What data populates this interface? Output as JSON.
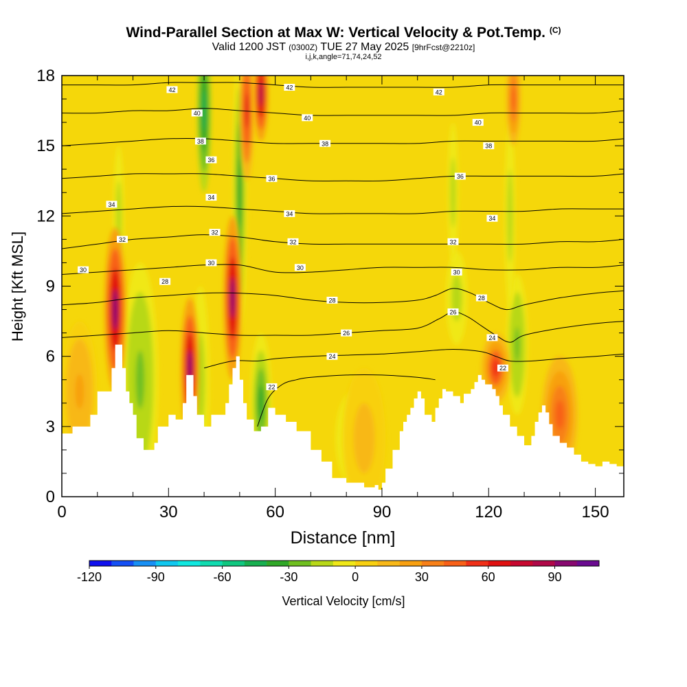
{
  "header": {
    "title": "Wind-Parallel Section at Max W: Vertical Velocity & Pot.Temp.",
    "title_tag": "(C)",
    "valid_a": "Valid 1200 JST",
    "valid_b": "(0300Z)",
    "valid_c": "TUE 27 May 2025",
    "valid_d": "[9hrFcst@2210z]",
    "params": "i,j,k,angle=71,74,24,52"
  },
  "colors": {
    "background": "#ffffff",
    "field_base": "#f5d70a",
    "contour": "#000000",
    "terrain": "#ffffff"
  },
  "chart_data": {
    "type": "heatmap",
    "xlabel": "Distance [nm]",
    "ylabel": "Height [Kft MSL]",
    "xlim": [
      0,
      158
    ],
    "ylim": [
      0,
      18
    ],
    "x_ticks": [
      0,
      30,
      60,
      90,
      120,
      150
    ],
    "y_ticks": [
      0,
      3,
      6,
      9,
      12,
      15,
      18
    ],
    "x_minor_step": 10,
    "y_minor_step": 1,
    "grid": false,
    "colorbar": {
      "label": "Vertical Velocity [cm/s]",
      "min": -120,
      "step": 10,
      "tick_values": [
        -120,
        -90,
        -60,
        -30,
        0,
        30,
        60,
        90
      ],
      "colors": [
        "#1010ee",
        "#1550f5",
        "#1890f5",
        "#10c8f0",
        "#10e8e0",
        "#10dcb0",
        "#10c880",
        "#18b050",
        "#30a828",
        "#70c020",
        "#b8d818",
        "#f0e818",
        "#f8d010",
        "#f8b818",
        "#f8a010",
        "#f88018",
        "#f86018",
        "#f03018",
        "#e01010",
        "#c80830",
        "#b00848",
        "#880870",
        "#6a0a90"
      ]
    },
    "terrain_profile": {
      "x": [
        0,
        3,
        8,
        10,
        14,
        15,
        16,
        17,
        18,
        19,
        20,
        21,
        23,
        26,
        27,
        30,
        32,
        34,
        35,
        37,
        38,
        40,
        41,
        42,
        46,
        47,
        48,
        49,
        50,
        51,
        52,
        54,
        56,
        58,
        60,
        63,
        66,
        70,
        73,
        76,
        80,
        85,
        88,
        89,
        90,
        91,
        93,
        95,
        96,
        97,
        98,
        99,
        100,
        101,
        102,
        104,
        105,
        106,
        107,
        108,
        110,
        112,
        113,
        115,
        116,
        117,
        118,
        119,
        120,
        121,
        122,
        123,
        124,
        126,
        128,
        130,
        132,
        133,
        134,
        135,
        136,
        137,
        138,
        140,
        142,
        144,
        146,
        148,
        150,
        152,
        154,
        156,
        158
      ],
      "y": [
        2.7,
        3.0,
        3.5,
        4.5,
        5.5,
        6.5,
        6.5,
        5.5,
        4.5,
        4.0,
        3.5,
        2.5,
        2.0,
        2.3,
        3.0,
        3.5,
        3.3,
        4.0,
        5.2,
        4.3,
        3.5,
        3.0,
        3.0,
        3.5,
        4.0,
        4.8,
        5.5,
        6.0,
        5.0,
        4.0,
        3.3,
        2.8,
        3.0,
        3.8,
        3.5,
        3.2,
        2.8,
        2.0,
        1.5,
        0.8,
        0.6,
        0.4,
        0.5,
        0.3,
        0.6,
        1.2,
        2.0,
        2.8,
        3.2,
        3.5,
        3.8,
        4.2,
        4.5,
        4.2,
        3.5,
        3.2,
        3.8,
        4.2,
        4.6,
        4.5,
        4.3,
        4.0,
        4.4,
        4.6,
        4.9,
        5.2,
        5.0,
        4.8,
        4.8,
        4.6,
        4.3,
        3.9,
        3.5,
        3.0,
        2.6,
        2.2,
        2.6,
        3.2,
        3.6,
        3.9,
        3.6,
        3.1,
        2.6,
        2.3,
        2.1,
        1.8,
        1.5,
        1.4,
        1.3,
        1.5,
        1.4,
        1.3,
        1.3
      ]
    },
    "updrafts": [
      {
        "x": 15,
        "y": 8,
        "width_nm": 3,
        "height_kft": 3.5,
        "w": 90
      },
      {
        "x": 36,
        "y": 5.5,
        "width_nm": 2.5,
        "height_kft": 3.0,
        "w": 90
      },
      {
        "x": 48,
        "y": 8.5,
        "width_nm": 2.5,
        "height_kft": 3.5,
        "w": 90
      },
      {
        "x": 52,
        "y": 16.5,
        "width_nm": 2,
        "height_kft": 3.0,
        "w": 60
      },
      {
        "x": 56,
        "y": 17.2,
        "width_nm": 2,
        "height_kft": 2.0,
        "w": 80
      },
      {
        "x": 122,
        "y": 5.5,
        "width_nm": 4,
        "height_kft": 1.5,
        "w": 55
      },
      {
        "x": 140,
        "y": 3.5,
        "width_nm": 5,
        "height_kft": 2.5,
        "w": 40
      },
      {
        "x": 127,
        "y": 17.0,
        "width_nm": 2,
        "height_kft": 2.0,
        "w": 40
      },
      {
        "x": 5,
        "y": 4.5,
        "width_nm": 5,
        "height_kft": 3.0,
        "w": 20
      },
      {
        "x": 85,
        "y": 2.5,
        "width_nm": 6,
        "height_kft": 3.0,
        "w": 15
      }
    ],
    "downdrafts": [
      {
        "x": 22,
        "y": 5.0,
        "width_nm": 5,
        "height_kft": 5.0,
        "w": -25
      },
      {
        "x": 39,
        "y": 5.0,
        "width_nm": 2.5,
        "height_kft": 4.0,
        "w": -20
      },
      {
        "x": 40,
        "y": 16.5,
        "width_nm": 2,
        "height_kft": 3.5,
        "w": -50
      },
      {
        "x": 50,
        "y": 13.0,
        "width_nm": 2,
        "height_kft": 6.0,
        "w": -40
      },
      {
        "x": 56,
        "y": 4.0,
        "width_nm": 3,
        "height_kft": 3.0,
        "w": -40
      },
      {
        "x": 111,
        "y": 8.5,
        "width_nm": 3,
        "height_kft": 2.0,
        "w": -20
      },
      {
        "x": 128,
        "y": 6.5,
        "width_nm": 3,
        "height_kft": 3.0,
        "w": -25
      },
      {
        "x": 110,
        "y": 13.0,
        "width_nm": 1.5,
        "height_kft": 3.0,
        "w": -15
      },
      {
        "x": 126,
        "y": 12.0,
        "width_nm": 1.5,
        "height_kft": 4.0,
        "w": -15
      },
      {
        "x": 16,
        "y": 12.0,
        "width_nm": 1.5,
        "height_kft": 3.0,
        "w": -15
      },
      {
        "x": 82,
        "y": 2.5,
        "width_nm": 5,
        "height_kft": 2.0,
        "w": -12
      }
    ],
    "isentropes": [
      {
        "label": "22",
        "x": [
          55,
          58,
          62,
          66,
          70,
          80,
          90,
          100,
          105
        ],
        "y": [
          3.0,
          4.2,
          4.8,
          5.0,
          5.1,
          5.2,
          5.2,
          5.1,
          5.0
        ]
      },
      {
        "label": "24",
        "x": [
          40,
          48,
          55,
          60,
          70,
          80,
          90,
          100,
          110,
          118,
          122,
          126,
          132,
          140,
          150,
          158
        ],
        "y": [
          5.5,
          5.8,
          5.8,
          5.9,
          6.0,
          6.05,
          6.1,
          6.2,
          6.3,
          6.2,
          6.0,
          5.8,
          5.8,
          5.9,
          6.0,
          6.1
        ]
      },
      {
        "label": "26",
        "x": [
          0,
          10,
          20,
          30,
          40,
          50,
          60,
          70,
          80,
          90,
          100,
          106,
          110,
          114,
          118,
          122,
          126,
          130,
          140,
          150,
          158
        ],
        "y": [
          6.8,
          6.9,
          7.0,
          7.1,
          7.0,
          6.9,
          6.9,
          6.9,
          7.0,
          7.1,
          7.2,
          7.6,
          7.9,
          7.7,
          7.3,
          6.9,
          6.6,
          6.9,
          7.2,
          7.4,
          7.5
        ]
      },
      {
        "label": "28",
        "x": [
          0,
          10,
          20,
          30,
          40,
          50,
          60,
          70,
          80,
          90,
          100,
          105,
          110,
          115,
          120,
          125,
          130,
          140,
          150,
          158
        ],
        "y": [
          8.2,
          8.3,
          8.5,
          8.6,
          8.7,
          8.7,
          8.6,
          8.4,
          8.3,
          8.3,
          8.4,
          8.6,
          8.9,
          8.7,
          8.3,
          8.0,
          8.2,
          8.5,
          8.7,
          8.8
        ]
      },
      {
        "label": "30",
        "x": [
          0,
          10,
          20,
          30,
          40,
          50,
          60,
          70,
          80,
          90,
          100,
          110,
          120,
          130,
          140,
          150,
          158
        ],
        "y": [
          9.5,
          9.6,
          9.7,
          9.8,
          9.9,
          9.9,
          9.6,
          9.6,
          9.7,
          9.8,
          9.8,
          9.8,
          9.7,
          9.7,
          9.8,
          9.8,
          9.9
        ]
      },
      {
        "label": "32",
        "x": [
          0,
          10,
          20,
          30,
          40,
          50,
          60,
          70,
          80,
          90,
          100,
          110,
          120,
          130,
          140,
          150,
          158
        ],
        "y": [
          10.6,
          10.8,
          11.0,
          11.1,
          11.2,
          11.1,
          10.9,
          10.8,
          10.8,
          10.8,
          10.8,
          10.8,
          10.8,
          10.8,
          10.9,
          10.9,
          11.0
        ]
      },
      {
        "label": "34",
        "x": [
          0,
          10,
          20,
          30,
          40,
          50,
          60,
          70,
          80,
          90,
          100,
          110,
          120,
          130,
          140,
          150,
          158
        ],
        "y": [
          12.1,
          12.2,
          12.3,
          12.4,
          12.4,
          12.3,
          12.2,
          12.1,
          12.1,
          12.1,
          12.1,
          12.2,
          12.2,
          12.2,
          12.3,
          12.3,
          12.3
        ]
      },
      {
        "label": "36",
        "x": [
          0,
          10,
          20,
          30,
          40,
          50,
          60,
          70,
          80,
          90,
          100,
          110,
          120,
          130,
          140,
          150,
          158
        ],
        "y": [
          13.6,
          13.7,
          13.8,
          13.8,
          13.8,
          13.7,
          13.6,
          13.5,
          13.5,
          13.5,
          13.6,
          13.7,
          13.7,
          13.7,
          13.7,
          13.7,
          13.8
        ]
      },
      {
        "label": "38",
        "x": [
          0,
          10,
          20,
          30,
          40,
          50,
          60,
          70,
          80,
          90,
          100,
          110,
          120,
          130,
          140,
          150,
          158
        ],
        "y": [
          15.0,
          15.1,
          15.2,
          15.3,
          15.3,
          15.2,
          15.1,
          15.1,
          15.1,
          15.1,
          15.1,
          15.2,
          15.2,
          15.2,
          15.2,
          15.2,
          15.3
        ]
      },
      {
        "label": "40",
        "x": [
          0,
          10,
          20,
          30,
          40,
          50,
          60,
          70,
          80,
          90,
          100,
          110,
          120,
          130,
          140,
          150,
          158
        ],
        "y": [
          16.4,
          16.4,
          16.5,
          16.5,
          16.6,
          16.5,
          16.4,
          16.3,
          16.3,
          16.3,
          16.3,
          16.3,
          16.4,
          16.4,
          16.4,
          16.4,
          16.5
        ]
      },
      {
        "label": "42",
        "x": [
          0,
          10,
          20,
          30,
          40,
          50,
          60,
          70,
          80,
          90,
          100,
          110,
          120,
          130,
          140,
          150,
          158
        ],
        "y": [
          17.6,
          17.6,
          17.6,
          17.7,
          17.7,
          17.7,
          17.6,
          17.5,
          17.5,
          17.5,
          17.5,
          17.5,
          17.6,
          17.6,
          17.6,
          17.6,
          17.6
        ]
      }
    ],
    "contour_labels": [
      {
        "text": "42",
        "x": 31,
        "y": 17.4
      },
      {
        "text": "42",
        "x": 64,
        "y": 17.5
      },
      {
        "text": "42",
        "x": 106,
        "y": 17.3
      },
      {
        "text": "40",
        "x": 38,
        "y": 16.4
      },
      {
        "text": "40",
        "x": 69,
        "y": 16.2
      },
      {
        "text": "40",
        "x": 117,
        "y": 16.0
      },
      {
        "text": "38",
        "x": 39,
        "y": 15.2
      },
      {
        "text": "38",
        "x": 74,
        "y": 15.1
      },
      {
        "text": "38",
        "x": 120,
        "y": 15.0
      },
      {
        "text": "36",
        "x": 42,
        "y": 14.4
      },
      {
        "text": "36",
        "x": 59,
        "y": 13.6
      },
      {
        "text": "36",
        "x": 112,
        "y": 13.7
      },
      {
        "text": "34",
        "x": 14,
        "y": 12.5
      },
      {
        "text": "34",
        "x": 42,
        "y": 12.8
      },
      {
        "text": "34",
        "x": 64,
        "y": 12.1
      },
      {
        "text": "34",
        "x": 121,
        "y": 11.9
      },
      {
        "text": "32",
        "x": 17,
        "y": 11.0
      },
      {
        "text": "32",
        "x": 43,
        "y": 11.3
      },
      {
        "text": "32",
        "x": 65,
        "y": 10.9
      },
      {
        "text": "32",
        "x": 110,
        "y": 10.9
      },
      {
        "text": "30",
        "x": 6,
        "y": 9.7
      },
      {
        "text": "30",
        "x": 42,
        "y": 10.0
      },
      {
        "text": "30",
        "x": 67,
        "y": 9.8
      },
      {
        "text": "30",
        "x": 111,
        "y": 9.6
      },
      {
        "text": "28",
        "x": 29,
        "y": 9.2
      },
      {
        "text": "28",
        "x": 76,
        "y": 8.4
      },
      {
        "text": "28",
        "x": 118,
        "y": 8.5
      },
      {
        "text": "26",
        "x": 110,
        "y": 7.9
      },
      {
        "text": "26",
        "x": 80,
        "y": 7.0
      },
      {
        "text": "24",
        "x": 121,
        "y": 6.8
      },
      {
        "text": "24",
        "x": 76,
        "y": 6.0
      },
      {
        "text": "22",
        "x": 124,
        "y": 5.5
      },
      {
        "text": "22",
        "x": 59,
        "y": 4.7
      }
    ]
  }
}
